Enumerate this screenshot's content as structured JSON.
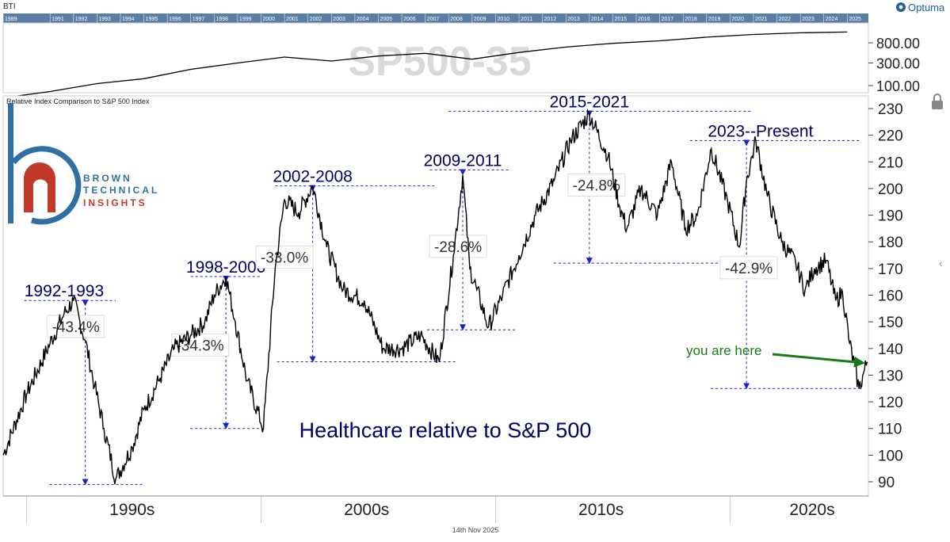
{
  "header": {
    "ticker": "BTI",
    "brand": "Optuma",
    "watermark": "SP500-35",
    "subtitle": "Relative Index Comparison to S&P 500 Index",
    "date": "14th Nov 2025"
  },
  "logo": {
    "line1": "BROWN",
    "line2": "TECHNICAL",
    "line3": "INSIGHTS"
  },
  "top_years": [
    "1989",
    "1991",
    "1992",
    "1993",
    "1994",
    "1995",
    "1996",
    "1997",
    "1998",
    "1999",
    "2000",
    "2001",
    "2002",
    "2003",
    "2004",
    "2005",
    "2006",
    "2007",
    "2008",
    "2009",
    "2010",
    "2011",
    "2012",
    "2013",
    "2014",
    "2015",
    "2016",
    "2017",
    "2018",
    "2019",
    "2020",
    "2021",
    "2022",
    "2023",
    "2024",
    "2025"
  ],
  "colors": {
    "line": "#000000",
    "annotation": "#000066",
    "guide": "#1f1fcc",
    "arrow_green": "#1a7a1a",
    "year_strip": "#5a7fa6"
  },
  "chart_data": [
    {
      "type": "line",
      "title": "SP500-35",
      "y_ticks": [
        100,
        300,
        800
      ],
      "y_tick_labels": [
        "100.00",
        "300.00",
        "800.00"
      ],
      "y_scale": "log",
      "x": [
        1989,
        1991,
        1993,
        1995,
        1997,
        1999,
        2001,
        2003,
        2005,
        2007,
        2009,
        2011,
        2013,
        2015,
        2017,
        2019,
        2021,
        2023,
        2025
      ],
      "values": [
        55,
        75,
        110,
        140,
        220,
        300,
        400,
        330,
        420,
        480,
        360,
        500,
        650,
        780,
        880,
        1050,
        1200,
        1300,
        1350
      ]
    },
    {
      "type": "line",
      "title": "Healthcare relative to S&P 500",
      "ylim": [
        85,
        235
      ],
      "y_ticks": [
        90,
        100,
        110,
        120,
        130,
        140,
        150,
        160,
        170,
        180,
        190,
        200,
        210,
        220,
        230
      ],
      "x_tick_labels": [
        "1990s",
        "2000s",
        "2010s",
        "2020s"
      ],
      "x": [
        1989,
        1990,
        1991,
        1991.6,
        1992,
        1992.5,
        1992.9,
        1993.3,
        1993.8,
        1994.5,
        1995,
        1995.7,
        1996.3,
        1997,
        1997.6,
        1998,
        1998.5,
        1998.9,
        1999.4,
        2000.1,
        2000.6,
        2001,
        2001.6,
        2002.2,
        2002.8,
        2003.5,
        2004.4,
        2005.2,
        2006,
        2006.8,
        2007.6,
        2008.2,
        2008.6,
        2008.9,
        2009.2,
        2009.7,
        2010.3,
        2011,
        2011.7,
        2012.5,
        2013.2,
        2014,
        2014.8,
        2015.3,
        2015.6,
        2016.2,
        2016.9,
        2017.5,
        2018.1,
        2018.6,
        2019.2,
        2019.9,
        2020.4,
        2020.7,
        2021.1,
        2021.6,
        2022.2,
        2022.8,
        2023.2,
        2023.6,
        2024.1,
        2024.5,
        2024.8,
        2025.1,
        2025.5,
        2025.85
      ],
      "values": [
        100,
        123,
        142,
        153,
        158,
        143,
        126,
        110,
        91,
        103,
        117,
        129,
        140,
        145,
        150,
        160,
        167,
        150,
        128,
        110,
        170,
        196,
        191,
        201,
        178,
        162,
        158,
        140,
        140,
        145,
        135,
        175,
        205,
        170,
        162,
        148,
        160,
        175,
        190,
        203,
        218,
        228,
        212,
        193,
        185,
        200,
        190,
        210,
        185,
        190,
        215,
        195,
        178,
        203,
        218,
        197,
        180,
        172,
        162,
        170,
        173,
        158,
        161,
        142,
        125,
        135
      ],
      "annotations": [
        {
          "label": "1992-1993",
          "pct": "-43.4%",
          "peak": 158,
          "trough": 89
        },
        {
          "label": "1998-2000",
          "pct": "-34.3%",
          "peak": 167,
          "trough": 110
        },
        {
          "label": "2002-2008",
          "pct": "-33.0%",
          "peak": 201,
          "trough": 135
        },
        {
          "label": "2009-2011",
          "pct": "-28.6%",
          "peak": 207,
          "trough": 147
        },
        {
          "label": "2015-2021",
          "pct": "-24.8%",
          "peak": 229,
          "trough": 172
        },
        {
          "label": "2023--Present",
          "pct": "-42.9%",
          "peak": 218,
          "trough": 125
        }
      ],
      "callout": "you are here"
    }
  ]
}
